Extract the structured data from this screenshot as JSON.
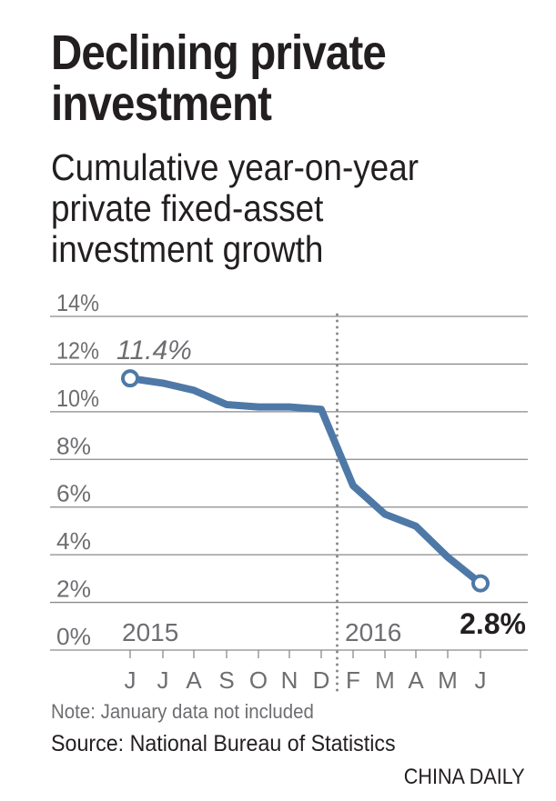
{
  "title": [
    "Declining private",
    "investment"
  ],
  "subtitle": [
    "Cumulative year-on-year",
    "private fixed-asset",
    "investment growth"
  ],
  "chart_data": {
    "type": "line",
    "title": "Declining private investment",
    "subtitle": "Cumulative year-on-year private fixed-asset investment growth",
    "categories": [
      "J",
      "J",
      "A",
      "S",
      "O",
      "N",
      "D",
      "F",
      "M",
      "A",
      "M",
      "J"
    ],
    "periods": [
      "2015-06",
      "2015-07",
      "2015-08",
      "2015-09",
      "2015-10",
      "2015-11",
      "2015-12",
      "2016-02",
      "2016-03",
      "2016-04",
      "2016-05",
      "2016-06"
    ],
    "values": [
      11.4,
      11.2,
      10.9,
      10.3,
      10.2,
      10.2,
      10.1,
      6.9,
      5.7,
      5.2,
      3.9,
      2.8
    ],
    "ylim": [
      0,
      14
    ],
    "yticks": [
      0,
      2,
      4,
      6,
      8,
      10,
      12,
      14
    ],
    "ytick_labels": [
      "0%",
      "2%",
      "4%",
      "6%",
      "8%",
      "10%",
      "12%",
      "14%"
    ],
    "year_labels": [
      "2015",
      "2016"
    ],
    "year_divider_between": [
      "D",
      "F"
    ],
    "annotations": {
      "first": "11.4%",
      "last": "2.8%"
    },
    "grid": true,
    "line_color": "#4e79a7"
  },
  "note": "Note: January data not included",
  "source": "Source: National Bureau of Statistics",
  "brand": "CHINA DAILY"
}
